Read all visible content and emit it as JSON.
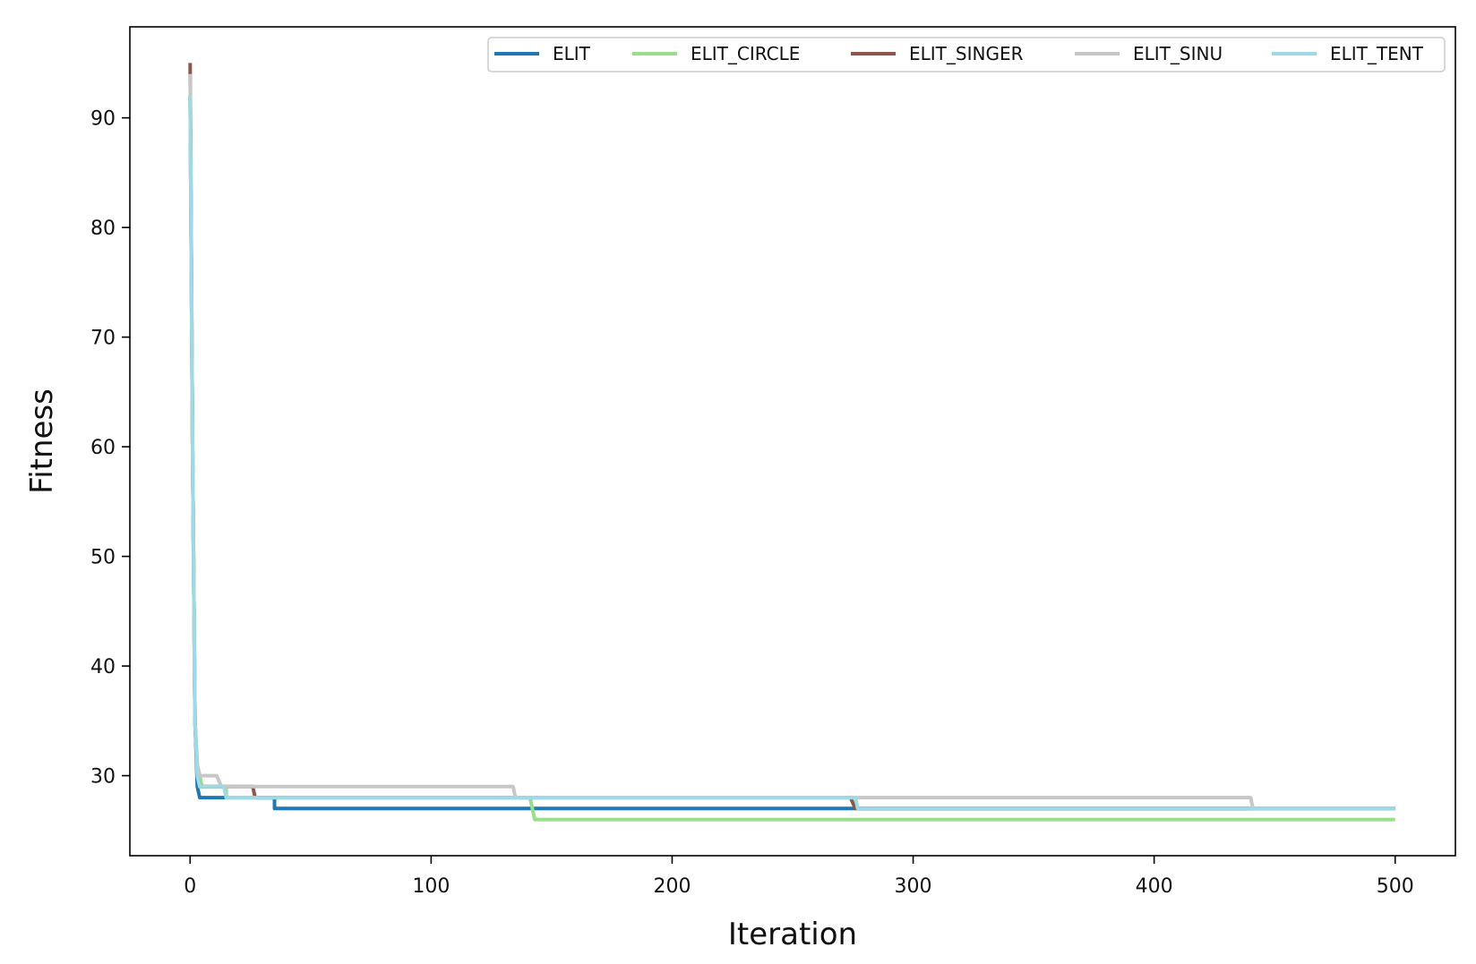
{
  "chart_data": {
    "type": "line",
    "title": "",
    "xlabel": "Iteration",
    "ylabel": "Fitness",
    "xlim": [
      -25,
      525
    ],
    "ylim": [
      22.7,
      98.3
    ],
    "xticks": [
      0,
      100,
      200,
      300,
      400,
      500
    ],
    "yticks": [
      30,
      40,
      50,
      60,
      70,
      80,
      90
    ],
    "grid": false,
    "legend_placement": "top-right",
    "legend_columns": 5,
    "series": [
      {
        "name": "ELIT",
        "color": "#1f77b4",
        "x": [
          0,
          1,
          2,
          3,
          4,
          35,
          35,
          500
        ],
        "y": [
          92,
          60,
          35,
          29,
          28,
          28,
          27,
          27
        ]
      },
      {
        "name": "ELIT_CIRCLE",
        "color": "#98df8a",
        "x": [
          0,
          1,
          2,
          3,
          4,
          5,
          15,
          15,
          141,
          143,
          500
        ],
        "y": [
          92,
          60,
          35,
          31,
          30,
          29,
          29,
          28,
          28,
          26,
          26
        ]
      },
      {
        "name": "ELIT_SINGER",
        "color": "#8c564b",
        "x": [
          0,
          1,
          2,
          3,
          4,
          26,
          27,
          274,
          276,
          500
        ],
        "y": [
          95,
          60,
          35,
          30,
          29,
          29,
          28,
          28,
          27,
          27
        ]
      },
      {
        "name": "ELIT_SINU",
        "color": "#c7c7c7",
        "x": [
          0,
          1,
          2,
          3,
          4,
          11,
          13,
          134,
          135,
          440,
          441,
          500
        ],
        "y": [
          94,
          60,
          35,
          31,
          30,
          30,
          29,
          29,
          28,
          28,
          27,
          27
        ]
      },
      {
        "name": "ELIT_TENT",
        "color": "#9edae5",
        "x": [
          0,
          1,
          2,
          3,
          4,
          14,
          15,
          276,
          277,
          500
        ],
        "y": [
          92,
          60,
          35,
          30,
          29,
          29,
          28,
          28,
          27,
          27
        ]
      }
    ]
  }
}
